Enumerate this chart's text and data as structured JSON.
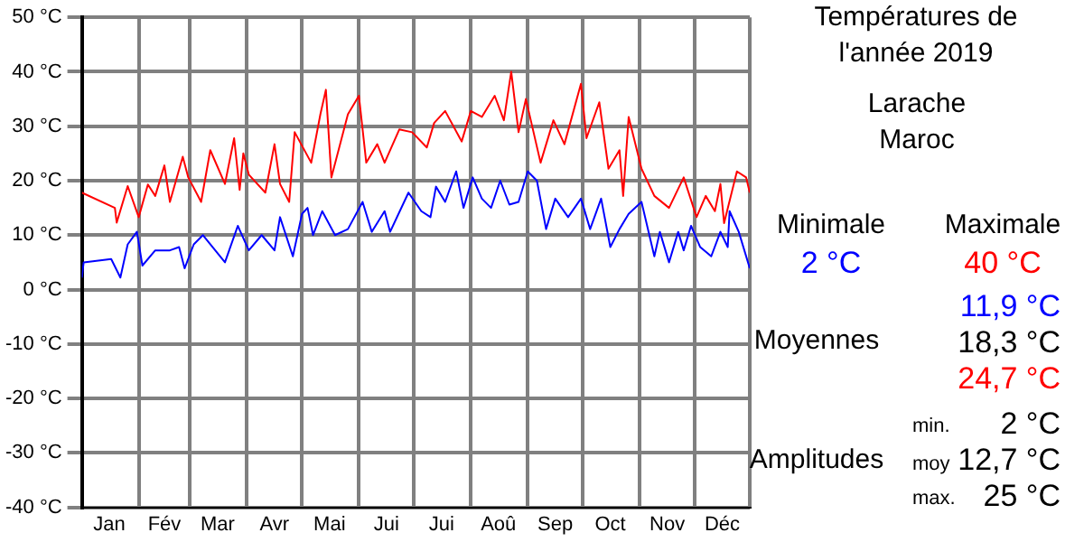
{
  "chart_data": {
    "type": "line",
    "title": "Températures de l'année 2019",
    "subtitle": "Larache\nMaroc",
    "annotations": [
      "Minimale",
      "Maximale",
      "2 °C",
      "40 °C",
      "11,9 °C",
      "Moyennes",
      "18,3 °C",
      "24,7 °C",
      "min.",
      "2 °C",
      "Amplitudes",
      "moy",
      "12,7 °C",
      "max.",
      "25 °C"
    ],
    "series": [
      {
        "color": "#ff0000",
        "x": [
          "2019-01-01",
          "2019-01-19",
          "2019-01-20",
          "2019-01-26",
          "2019-02-01",
          "2019-02-06",
          "2019-02-10",
          "2019-02-15",
          "2019-02-18",
          "2019-02-25",
          "2019-02-28",
          "2019-03-07",
          "2019-03-12",
          "2019-03-20",
          "2019-03-25",
          "2019-03-28",
          "2019-03-30",
          "2019-04-02",
          "2019-04-11",
          "2019-04-16",
          "2019-04-19",
          "2019-04-24",
          "2019-04-27",
          "2019-05-06",
          "2019-05-11",
          "2019-05-14",
          "2019-05-17",
          "2019-05-26",
          "2019-06-01",
          "2019-06-05",
          "2019-06-11",
          "2019-06-15",
          "2019-06-23",
          "2019-06-30",
          "2019-07-08",
          "2019-07-12",
          "2019-07-18",
          "2019-07-27",
          "2019-08-01",
          "2019-08-07",
          "2019-08-14",
          "2019-08-19",
          "2019-08-23",
          "2019-08-27",
          "2019-08-31",
          "2019-09-08",
          "2019-09-15",
          "2019-09-21",
          "2019-09-30",
          "2019-10-03",
          "2019-10-10",
          "2019-10-15",
          "2019-10-21",
          "2019-10-23",
          "2019-10-26",
          "2019-11-02",
          "2019-11-09",
          "2019-11-17",
          "2019-11-25",
          "2019-12-02",
          "2019-12-07",
          "2019-12-12",
          "2019-12-15",
          "2019-12-17",
          "2019-12-24",
          "2019-12-29",
          "2019-12-31"
        ],
        "values": [
          17.8,
          15,
          12.3,
          19,
          13.3,
          19.3,
          17.2,
          22.8,
          16.1,
          24.4,
          20.6,
          16.1,
          25.6,
          19.4,
          27.8,
          18.3,
          25,
          21.1,
          17.8,
          26.7,
          19.4,
          16.1,
          28.9,
          23.3,
          32.2,
          36.7,
          20.6,
          32.2,
          35.6,
          23.3,
          26.7,
          23.3,
          29.4,
          28.9,
          26.1,
          30.6,
          32.8,
          27.2,
          32.8,
          31.7,
          35.6,
          31.1,
          40,
          28.9,
          35,
          23.3,
          31.1,
          26.7,
          37.8,
          27.8,
          34.4,
          22.2,
          25.6,
          17.2,
          31.7,
          22.2,
          17.2,
          15,
          20.6,
          13.3,
          17.2,
          14.4,
          19.4,
          12.2,
          21.7,
          20.6,
          17.8
        ]
      },
      {
        "color": "#0000ff",
        "x": [
          "2019-01-01",
          "2019-01-02",
          "2019-01-17",
          "2019-01-22",
          "2019-01-26",
          "2019-01-31",
          "2019-02-03",
          "2019-02-10",
          "2019-02-18",
          "2019-02-23",
          "2019-02-26",
          "2019-03-03",
          "2019-03-08",
          "2019-03-20",
          "2019-03-27",
          "2019-04-02",
          "2019-04-09",
          "2019-04-16",
          "2019-04-19",
          "2019-04-26",
          "2019-05-01",
          "2019-05-04",
          "2019-05-07",
          "2019-05-12",
          "2019-05-19",
          "2019-05-26",
          "2019-06-03",
          "2019-06-08",
          "2019-06-15",
          "2019-06-18",
          "2019-06-28",
          "2019-07-05",
          "2019-07-10",
          "2019-07-13",
          "2019-07-18",
          "2019-07-24",
          "2019-07-28",
          "2019-08-02",
          "2019-08-07",
          "2019-08-12",
          "2019-08-17",
          "2019-08-22",
          "2019-08-27",
          "2019-09-01",
          "2019-09-06",
          "2019-09-11",
          "2019-09-16",
          "2019-09-23",
          "2019-09-30",
          "2019-10-05",
          "2019-10-11",
          "2019-10-16",
          "2019-10-21",
          "2019-10-26",
          "2019-11-02",
          "2019-11-09",
          "2019-11-12",
          "2019-11-17",
          "2019-11-22",
          "2019-11-25",
          "2019-11-29",
          "2019-12-04",
          "2019-12-10",
          "2019-12-15",
          "2019-12-19",
          "2019-12-20",
          "2019-12-25",
          "2019-12-31"
        ],
        "values": [
          2.2,
          5,
          5.6,
          2.2,
          8.3,
          10.6,
          4.4,
          7.2,
          7.2,
          7.8,
          3.9,
          8.3,
          10,
          5,
          11.7,
          7.2,
          10,
          7.2,
          13.3,
          6.1,
          13.9,
          15,
          10,
          14.4,
          10,
          11.1,
          16.1,
          10.6,
          14.4,
          10.6,
          17.8,
          14.4,
          13.3,
          18.9,
          16.1,
          21.7,
          15,
          20.6,
          16.7,
          15,
          20,
          15.6,
          16.1,
          21.7,
          20,
          11.1,
          16.7,
          13.3,
          16.7,
          11.1,
          16.7,
          7.8,
          11.1,
          13.9,
          16.1,
          6.1,
          10.6,
          5,
          10.6,
          7.2,
          11.7,
          7.8,
          6.1,
          10.6,
          7.8,
          14.4,
          10.6,
          3.9
        ]
      }
    ],
    "xlim": [
      "2019-01-01",
      "2019-12-31"
    ],
    "xticks": [
      {
        "value": "2019-01-01",
        "label": null
      },
      {
        "value": "2019-01-16",
        "label": "Jan"
      },
      {
        "value": "2019-02-01",
        "label": null
      },
      {
        "value": "2019-02-15",
        "label": "Fév"
      },
      {
        "value": "2019-03-01",
        "label": null
      },
      {
        "value": "2019-03-16",
        "label": "Mar"
      },
      {
        "value": "2019-04-01",
        "label": null
      },
      {
        "value": "2019-04-16",
        "label": "Avr"
      },
      {
        "value": "2019-05-01",
        "label": null
      },
      {
        "value": "2019-05-16",
        "label": "Mai"
      },
      {
        "value": "2019-06-01",
        "label": null
      },
      {
        "value": "2019-06-16",
        "label": "Jui"
      },
      {
        "value": "2019-07-01",
        "label": null
      },
      {
        "value": "2019-07-16",
        "label": "Jui"
      },
      {
        "value": "2019-08-01",
        "label": null
      },
      {
        "value": "2019-08-16",
        "label": "Aoû"
      },
      {
        "value": "2019-09-01",
        "label": null
      },
      {
        "value": "2019-09-16",
        "label": "Sep"
      },
      {
        "value": "2019-10-01",
        "label": null
      },
      {
        "value": "2019-10-16",
        "label": "Oct"
      },
      {
        "value": "2019-11-01",
        "label": null
      },
      {
        "value": "2019-11-16",
        "label": "Nov"
      },
      {
        "value": "2019-12-01",
        "label": null
      },
      {
        "value": "2019-12-16",
        "label": "Déc"
      },
      {
        "value": "2019-12-31",
        "label": null
      }
    ],
    "ylim": [
      -40,
      50
    ],
    "yticks": [
      {
        "value": -40,
        "label": "-40 °C"
      },
      {
        "value": -30,
        "label": "-30 °C"
      },
      {
        "value": -20,
        "label": "-20 °C"
      },
      {
        "value": -10,
        "label": "-10 °C"
      },
      {
        "value": 0,
        "label": "0 °C"
      },
      {
        "value": 10,
        "label": "10 °C"
      },
      {
        "value": 20,
        "label": "20 °C"
      },
      {
        "value": 30,
        "label": "30 °C"
      },
      {
        "value": 40,
        "label": "40 °C"
      },
      {
        "value": 50,
        "label": "50 °C"
      }
    ],
    "grid": true,
    "legend": false,
    "marker": "none",
    "line_style": "solid"
  }
}
